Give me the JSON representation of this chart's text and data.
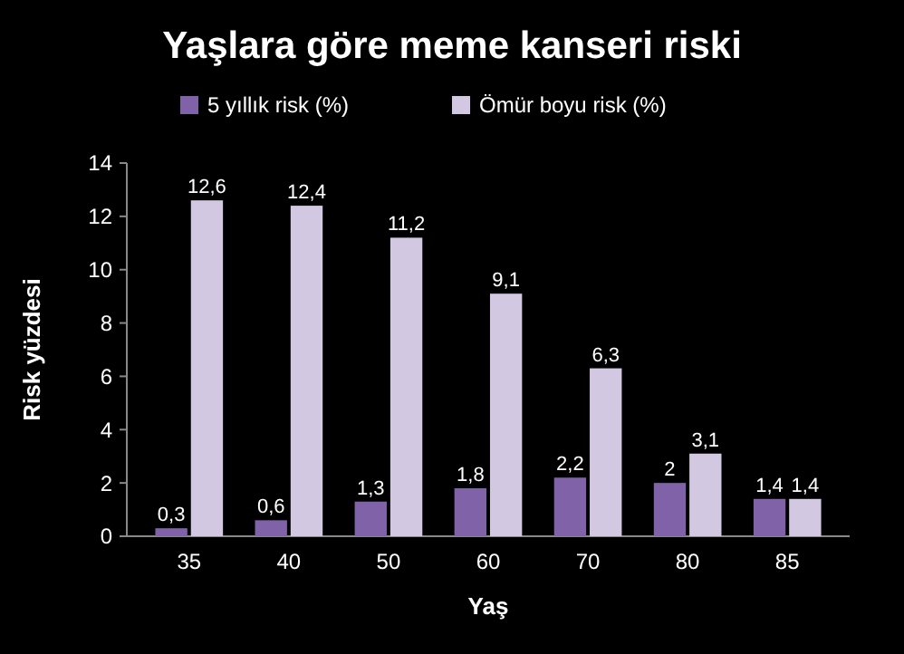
{
  "chart_data": {
    "type": "bar",
    "title": "Yaşlara göre meme kanseri riski",
    "xlabel": "Yaş",
    "ylabel": "Risk yüzdesi",
    "categories": [
      "35",
      "40",
      "50",
      "60",
      "70",
      "80",
      "85"
    ],
    "series": [
      {
        "name": "5 yıllık risk (%)",
        "color": "#7f62a8",
        "values": [
          0.3,
          0.6,
          1.3,
          1.8,
          2.2,
          2,
          1.4
        ],
        "value_labels": [
          "0,3",
          "0,6",
          "1,3",
          "1,8",
          "2,2",
          "2",
          "1,4"
        ]
      },
      {
        "name": "Ömür boyu risk (%)",
        "color": "#d3c8e2",
        "values": [
          12.6,
          12.4,
          11.2,
          9.1,
          6.3,
          3.1,
          1.4
        ],
        "value_labels": [
          "12,6",
          "12,4",
          "11,2",
          "9,1",
          "6,3",
          "3,1",
          "1,4"
        ]
      }
    ],
    "ylim": [
      0,
      14
    ],
    "yticks": [
      0,
      2,
      4,
      6,
      8,
      10,
      12,
      14
    ],
    "grid": false,
    "legend": "top"
  }
}
